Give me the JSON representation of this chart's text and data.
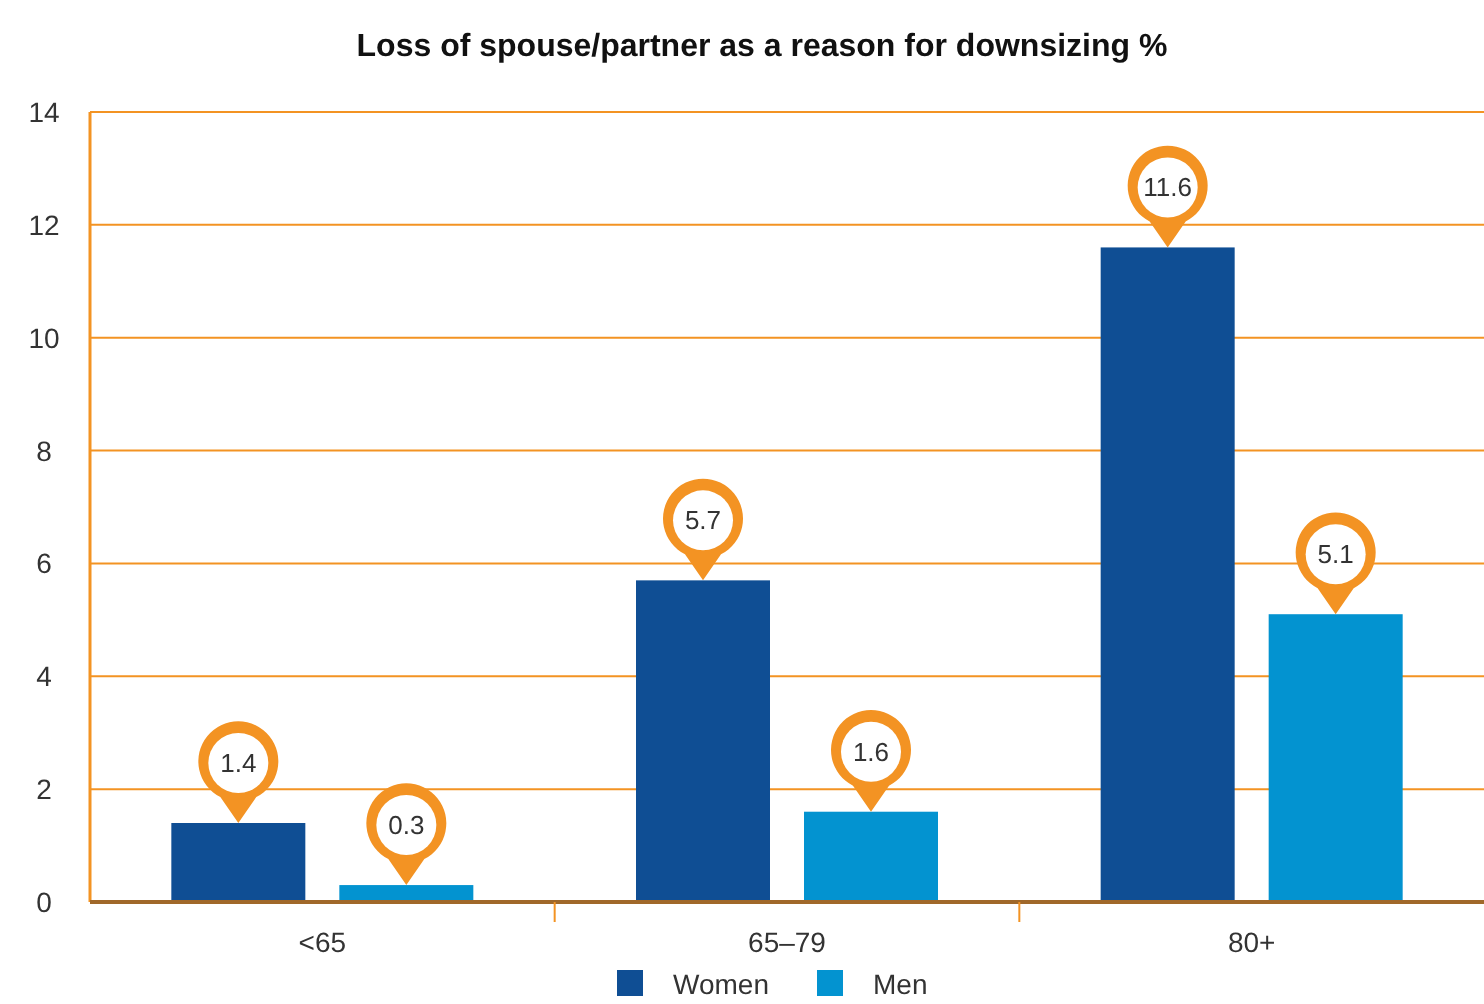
{
  "chart_data": {
    "type": "bar",
    "title": "Loss of spouse/partner as a reason for downsizing %",
    "categories": [
      "<65",
      "65–79",
      "80+"
    ],
    "series": [
      {
        "name": "Women",
        "color": "#0f4e94",
        "values": [
          1.4,
          5.7,
          11.6
        ]
      },
      {
        "name": "Men",
        "color": "#0393d0",
        "values": [
          0.3,
          1.6,
          5.1
        ]
      }
    ],
    "ylim": [
      0,
      14
    ],
    "yticks": [
      0,
      2,
      4,
      6,
      8,
      10,
      12,
      14
    ],
    "grid": "y",
    "legend": "bottom",
    "data_labels": true
  }
}
